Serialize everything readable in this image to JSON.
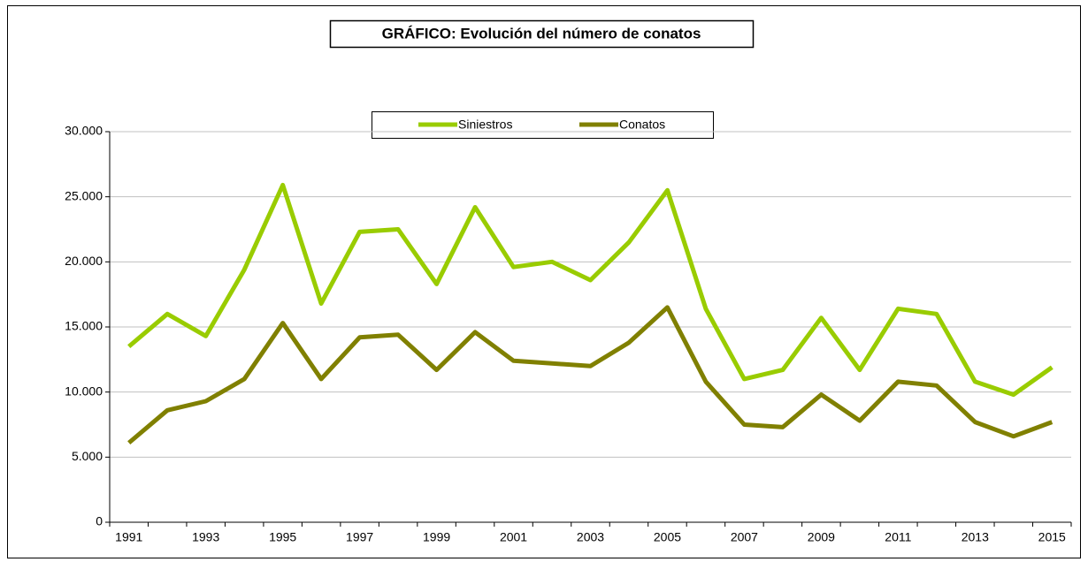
{
  "chart_data": {
    "type": "line",
    "title": "GRÁFICO: Evolución del número de conatos",
    "categories": [
      "1991",
      null,
      "1993",
      null,
      "1995",
      null,
      "1997",
      null,
      "1999",
      null,
      "2001",
      null,
      "2003",
      null,
      "2005",
      null,
      "2007",
      null,
      "2009",
      null,
      "2011",
      null,
      "2013",
      null,
      "2015"
    ],
    "series": [
      {
        "name": "Siniestros",
        "color": "#99cc00",
        "values": [
          13500,
          16000,
          14300,
          19400,
          25900,
          16800,
          22300,
          22500,
          18300,
          24200,
          19600,
          20000,
          18600,
          21500,
          25500,
          16400,
          11000,
          11700,
          15700,
          11700,
          16400,
          16000,
          10800,
          9800,
          11900
        ]
      },
      {
        "name": "Conatos",
        "color": "#808000",
        "values": [
          6100,
          8600,
          9300,
          11000,
          15300,
          11000,
          14200,
          14400,
          11700,
          14600,
          12400,
          12200,
          12000,
          13800,
          16500,
          10800,
          7500,
          7300,
          9800,
          7800,
          10800,
          10500,
          7700,
          6600,
          7700
        ]
      }
    ],
    "ylim": [
      0,
      30000
    ],
    "yticks": [
      0,
      {
        "value": 5000,
        "label": "5.000"
      },
      {
        "value": 10000,
        "label": "10.000"
      },
      {
        "value": 15000,
        "label": "15.000"
      },
      {
        "value": 20000,
        "label": "20.000"
      },
      {
        "value": 25000,
        "label": "25.000"
      },
      {
        "value": 30000,
        "label": "30.000"
      }
    ],
    "grid": true,
    "legend": "top"
  }
}
